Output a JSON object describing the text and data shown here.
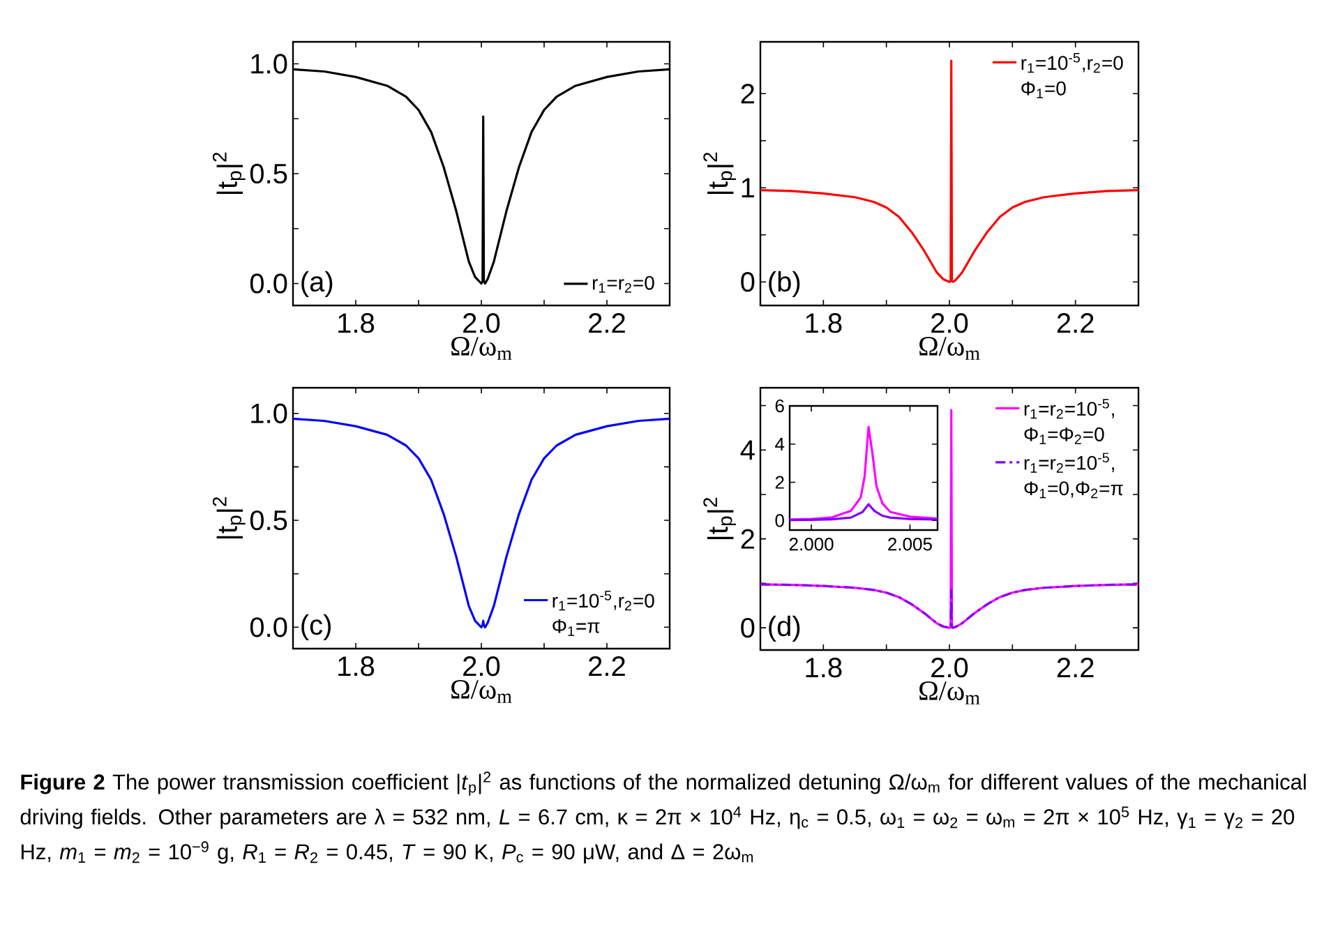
{
  "chart_data": [
    {
      "type": "line",
      "xlabel": "Ω/ω$_{m}$",
      "ylabel": "|t$_{p}$|$^{2}$",
      "xlim": [
        1.7,
        2.3
      ],
      "ylim": [
        -0.1,
        1.1
      ],
      "xticks": [
        1.8,
        {
          "value": 1.9,
          "label": null
        },
        {
          "value": 2,
          "label": "2.0"
        },
        {
          "value": 2.1,
          "label": null
        },
        2.2
      ],
      "yticks": [
        {
          "value": 0,
          "label": "0.0"
        },
        {
          "value": 0.25,
          "label": null
        },
        0.5,
        {
          "value": 0.75,
          "label": null
        },
        {
          "value": 1,
          "label": "1.0"
        }
      ],
      "legend": "bottom right",
      "annotations": [
        "(a)"
      ],
      "series": [
        {
          "name": "r$_{1}$=r$_{2}$=0",
          "color": "#000000",
          "line_style": "solid",
          "x": [
            1.7,
            1.75,
            1.8,
            1.85,
            1.88,
            1.9,
            1.92,
            1.94,
            1.96,
            1.98,
            1.99,
            2.0,
            2.002,
            2.003,
            2.004,
            2.006,
            2.01,
            2.02,
            2.04,
            2.06,
            2.08,
            2.1,
            2.12,
            2.15,
            2.2,
            2.25,
            2.3
          ],
          "values": [
            0.975,
            0.965,
            0.94,
            0.9,
            0.85,
            0.79,
            0.69,
            0.53,
            0.33,
            0.1,
            0.03,
            0.0,
            0.01,
            0.76,
            0.01,
            0.0,
            0.02,
            0.1,
            0.33,
            0.53,
            0.69,
            0.79,
            0.85,
            0.9,
            0.94,
            0.965,
            0.975
          ]
        }
      ]
    },
    {
      "type": "line",
      "xlabel": "Ω/ω$_{m}$",
      "ylabel": "|t$_{p}$|$^{2}$",
      "xlim": [
        1.7,
        2.3
      ],
      "ylim": [
        -0.25,
        2.55
      ],
      "xticks": [
        1.8,
        {
          "value": 1.9,
          "label": null
        },
        {
          "value": 2,
          "label": "2.0"
        },
        {
          "value": 2.1,
          "label": null
        },
        2.2
      ],
      "yticks": [
        0,
        {
          "value": 0.5,
          "label": null
        },
        1,
        {
          "value": 1.5,
          "label": null
        },
        2
      ],
      "legend": "top right",
      "annotations": [
        "(b)",
        "Φ$_{1}$=0"
      ],
      "series": [
        {
          "name": "r$_{1}$=10$^{-5}$,r$_{2}$=0",
          "color": "#ff0000",
          "line_style": "solid",
          "x": [
            1.7,
            1.75,
            1.8,
            1.85,
            1.88,
            1.9,
            1.92,
            1.94,
            1.96,
            1.98,
            1.99,
            2.0,
            2.002,
            2.003,
            2.004,
            2.006,
            2.01,
            2.02,
            2.04,
            2.06,
            2.08,
            2.1,
            2.12,
            2.15,
            2.2,
            2.25,
            2.3
          ],
          "values": [
            0.975,
            0.965,
            0.94,
            0.9,
            0.85,
            0.79,
            0.69,
            0.53,
            0.33,
            0.1,
            0.03,
            0.0,
            0.01,
            2.35,
            0.01,
            0.0,
            0.02,
            0.1,
            0.33,
            0.53,
            0.69,
            0.79,
            0.85,
            0.9,
            0.94,
            0.965,
            0.975
          ]
        }
      ]
    },
    {
      "type": "line",
      "xlabel": "Ω/ω$_{m}$",
      "ylabel": "|t$_{p}$|$^{2}$",
      "xlim": [
        1.7,
        2.3
      ],
      "ylim": [
        -0.1,
        1.12
      ],
      "xticks": [
        1.8,
        {
          "value": 1.9,
          "label": null
        },
        {
          "value": 2,
          "label": "2.0"
        },
        {
          "value": 2.1,
          "label": null
        },
        2.2
      ],
      "yticks": [
        {
          "value": 0,
          "label": "0.0"
        },
        {
          "value": 0.25,
          "label": null
        },
        0.5,
        {
          "value": 0.75,
          "label": null
        },
        {
          "value": 1,
          "label": "1.0"
        }
      ],
      "legend": "bottom right",
      "annotations": [
        "(c)",
        "Φ$_{1}$=π"
      ],
      "series": [
        {
          "name": "r$_{1}$=10$^{-5}$,r$_{2}$=0",
          "color": "#0000ff",
          "line_style": "solid",
          "x": [
            1.7,
            1.75,
            1.8,
            1.85,
            1.88,
            1.9,
            1.92,
            1.94,
            1.96,
            1.98,
            1.99,
            2.0,
            2.002,
            2.003,
            2.004,
            2.006,
            2.01,
            2.02,
            2.04,
            2.06,
            2.08,
            2.1,
            2.12,
            2.15,
            2.2,
            2.25,
            2.3
          ],
          "values": [
            0.975,
            0.965,
            0.94,
            0.9,
            0.85,
            0.79,
            0.69,
            0.53,
            0.33,
            0.1,
            0.03,
            0.0,
            0.01,
            0.03,
            0.01,
            0.0,
            0.02,
            0.1,
            0.33,
            0.53,
            0.69,
            0.79,
            0.85,
            0.9,
            0.94,
            0.965,
            0.975
          ]
        }
      ]
    },
    {
      "type": "line",
      "xlabel": "Ω/ω$_{m}$",
      "ylabel": "|t$_{p}$|$^{2}$",
      "xlim": [
        1.7,
        2.3
      ],
      "ylim": [
        -0.5,
        5.4
      ],
      "xticks": [
        1.8,
        {
          "value": 1.9,
          "label": null
        },
        {
          "value": 2,
          "label": "2.0"
        },
        {
          "value": 2.1,
          "label": null
        },
        2.2
      ],
      "yticks": [
        0,
        {
          "value": 1,
          "label": null
        },
        2,
        {
          "value": 3,
          "label": null
        },
        4,
        {
          "value": 5,
          "label": null
        }
      ],
      "legend": "top right",
      "annotations": [
        "(d)",
        "Φ$_{1}$=Φ$_{2}$=0",
        "Φ$_{1}$=0,Φ$_{2}$=π"
      ],
      "series": [
        {
          "name": "r$_{1}$=r$_{2}$=10$^{-5}$,",
          "color": "#ff00ff",
          "line_style": "solid",
          "x": [
            1.7,
            1.75,
            1.8,
            1.85,
            1.88,
            1.9,
            1.92,
            1.94,
            1.96,
            1.98,
            1.99,
            2.0,
            2.002,
            2.003,
            2.004,
            2.006,
            2.01,
            2.02,
            2.04,
            2.06,
            2.08,
            2.1,
            2.12,
            2.15,
            2.2,
            2.25,
            2.3
          ],
          "values": [
            0.975,
            0.965,
            0.94,
            0.9,
            0.85,
            0.79,
            0.69,
            0.53,
            0.33,
            0.1,
            0.03,
            0.0,
            0.01,
            4.9,
            0.01,
            0.0,
            0.02,
            0.1,
            0.33,
            0.53,
            0.69,
            0.79,
            0.85,
            0.9,
            0.94,
            0.965,
            0.975
          ]
        },
        {
          "name": "r$_{1}$=r$_{2}$=10$^{-5}$,",
          "color": "#8000ff",
          "line_style": "dashed",
          "x": [
            1.7,
            1.75,
            1.8,
            1.85,
            1.88,
            1.9,
            1.92,
            1.94,
            1.96,
            1.98,
            1.99,
            2.0,
            2.002,
            2.003,
            2.004,
            2.006,
            2.01,
            2.02,
            2.04,
            2.06,
            2.08,
            2.1,
            2.12,
            2.15,
            2.2,
            2.25,
            2.3
          ],
          "values": [
            0.975,
            0.965,
            0.94,
            0.9,
            0.85,
            0.79,
            0.69,
            0.53,
            0.33,
            0.1,
            0.03,
            0.0,
            0.01,
            0.85,
            0.01,
            0.0,
            0.02,
            0.1,
            0.33,
            0.53,
            0.69,
            0.79,
            0.85,
            0.9,
            0.94,
            0.965,
            0.975
          ]
        }
      ]
    },
    {
      "type": "line",
      "xlim": [
        1.9989,
        2.0064
      ],
      "ylim": [
        -0.5,
        6
      ],
      "xticks": [
        {
          "value": 2,
          "label": "2.000"
        },
        2.005
      ],
      "yticks": [
        0,
        2,
        4,
        6
      ],
      "series": [
        {
          "color": "#ff00ff",
          "line_style": "solid",
          "x": [
            1.9989,
            2.0,
            2.001,
            2.002,
            2.0025,
            2.0027,
            2.0029,
            2.0031,
            2.0033,
            2.0036,
            2.004,
            2.005,
            2.0064
          ],
          "values": [
            0.05,
            0.08,
            0.15,
            0.5,
            1.2,
            2.3,
            4.9,
            3.5,
            1.8,
            0.9,
            0.45,
            0.2,
            0.1
          ]
        },
        {
          "color": "#8000ff",
          "line_style": "solid",
          "x": [
            1.9989,
            2.0,
            2.001,
            2.002,
            2.0026,
            2.0029,
            2.0032,
            2.0036,
            2.004,
            2.005,
            2.0064
          ],
          "values": [
            0.02,
            0.03,
            0.06,
            0.15,
            0.45,
            0.85,
            0.5,
            0.25,
            0.15,
            0.08,
            0.05
          ]
        }
      ]
    },
    {
      "type": "other",
      "annotations": [
        "**Figure 2** The power transmission coefficient |*t*$_{p}$|$^{2}$ as functions of the normalized detuning Ω/ω$_{m}$ for different values of the mechanical driving fields. Other parameters are λ = 532 nm, *L* = 6.7 cm, κ = 2π × 10$^{4}$ Hz, η$_{c}$ = 0.5, ω$_{1}$ = ω$_{2}$ = ω$_{m}$ = 2π × 10$^{5}$ Hz, γ$_{1}$ = γ$_{2}$ = 20 Hz, *m*$_{1}$ = *m*$_{2}$ = 10$^{−9}$ g, *R*$_{1}$ = *R*$_{2}$ = 0.45, *T* = 90 K, *P*$_{c}$ = 90 μW, and Δ = 2ω$_{m}$"
      ]
    }
  ]
}
